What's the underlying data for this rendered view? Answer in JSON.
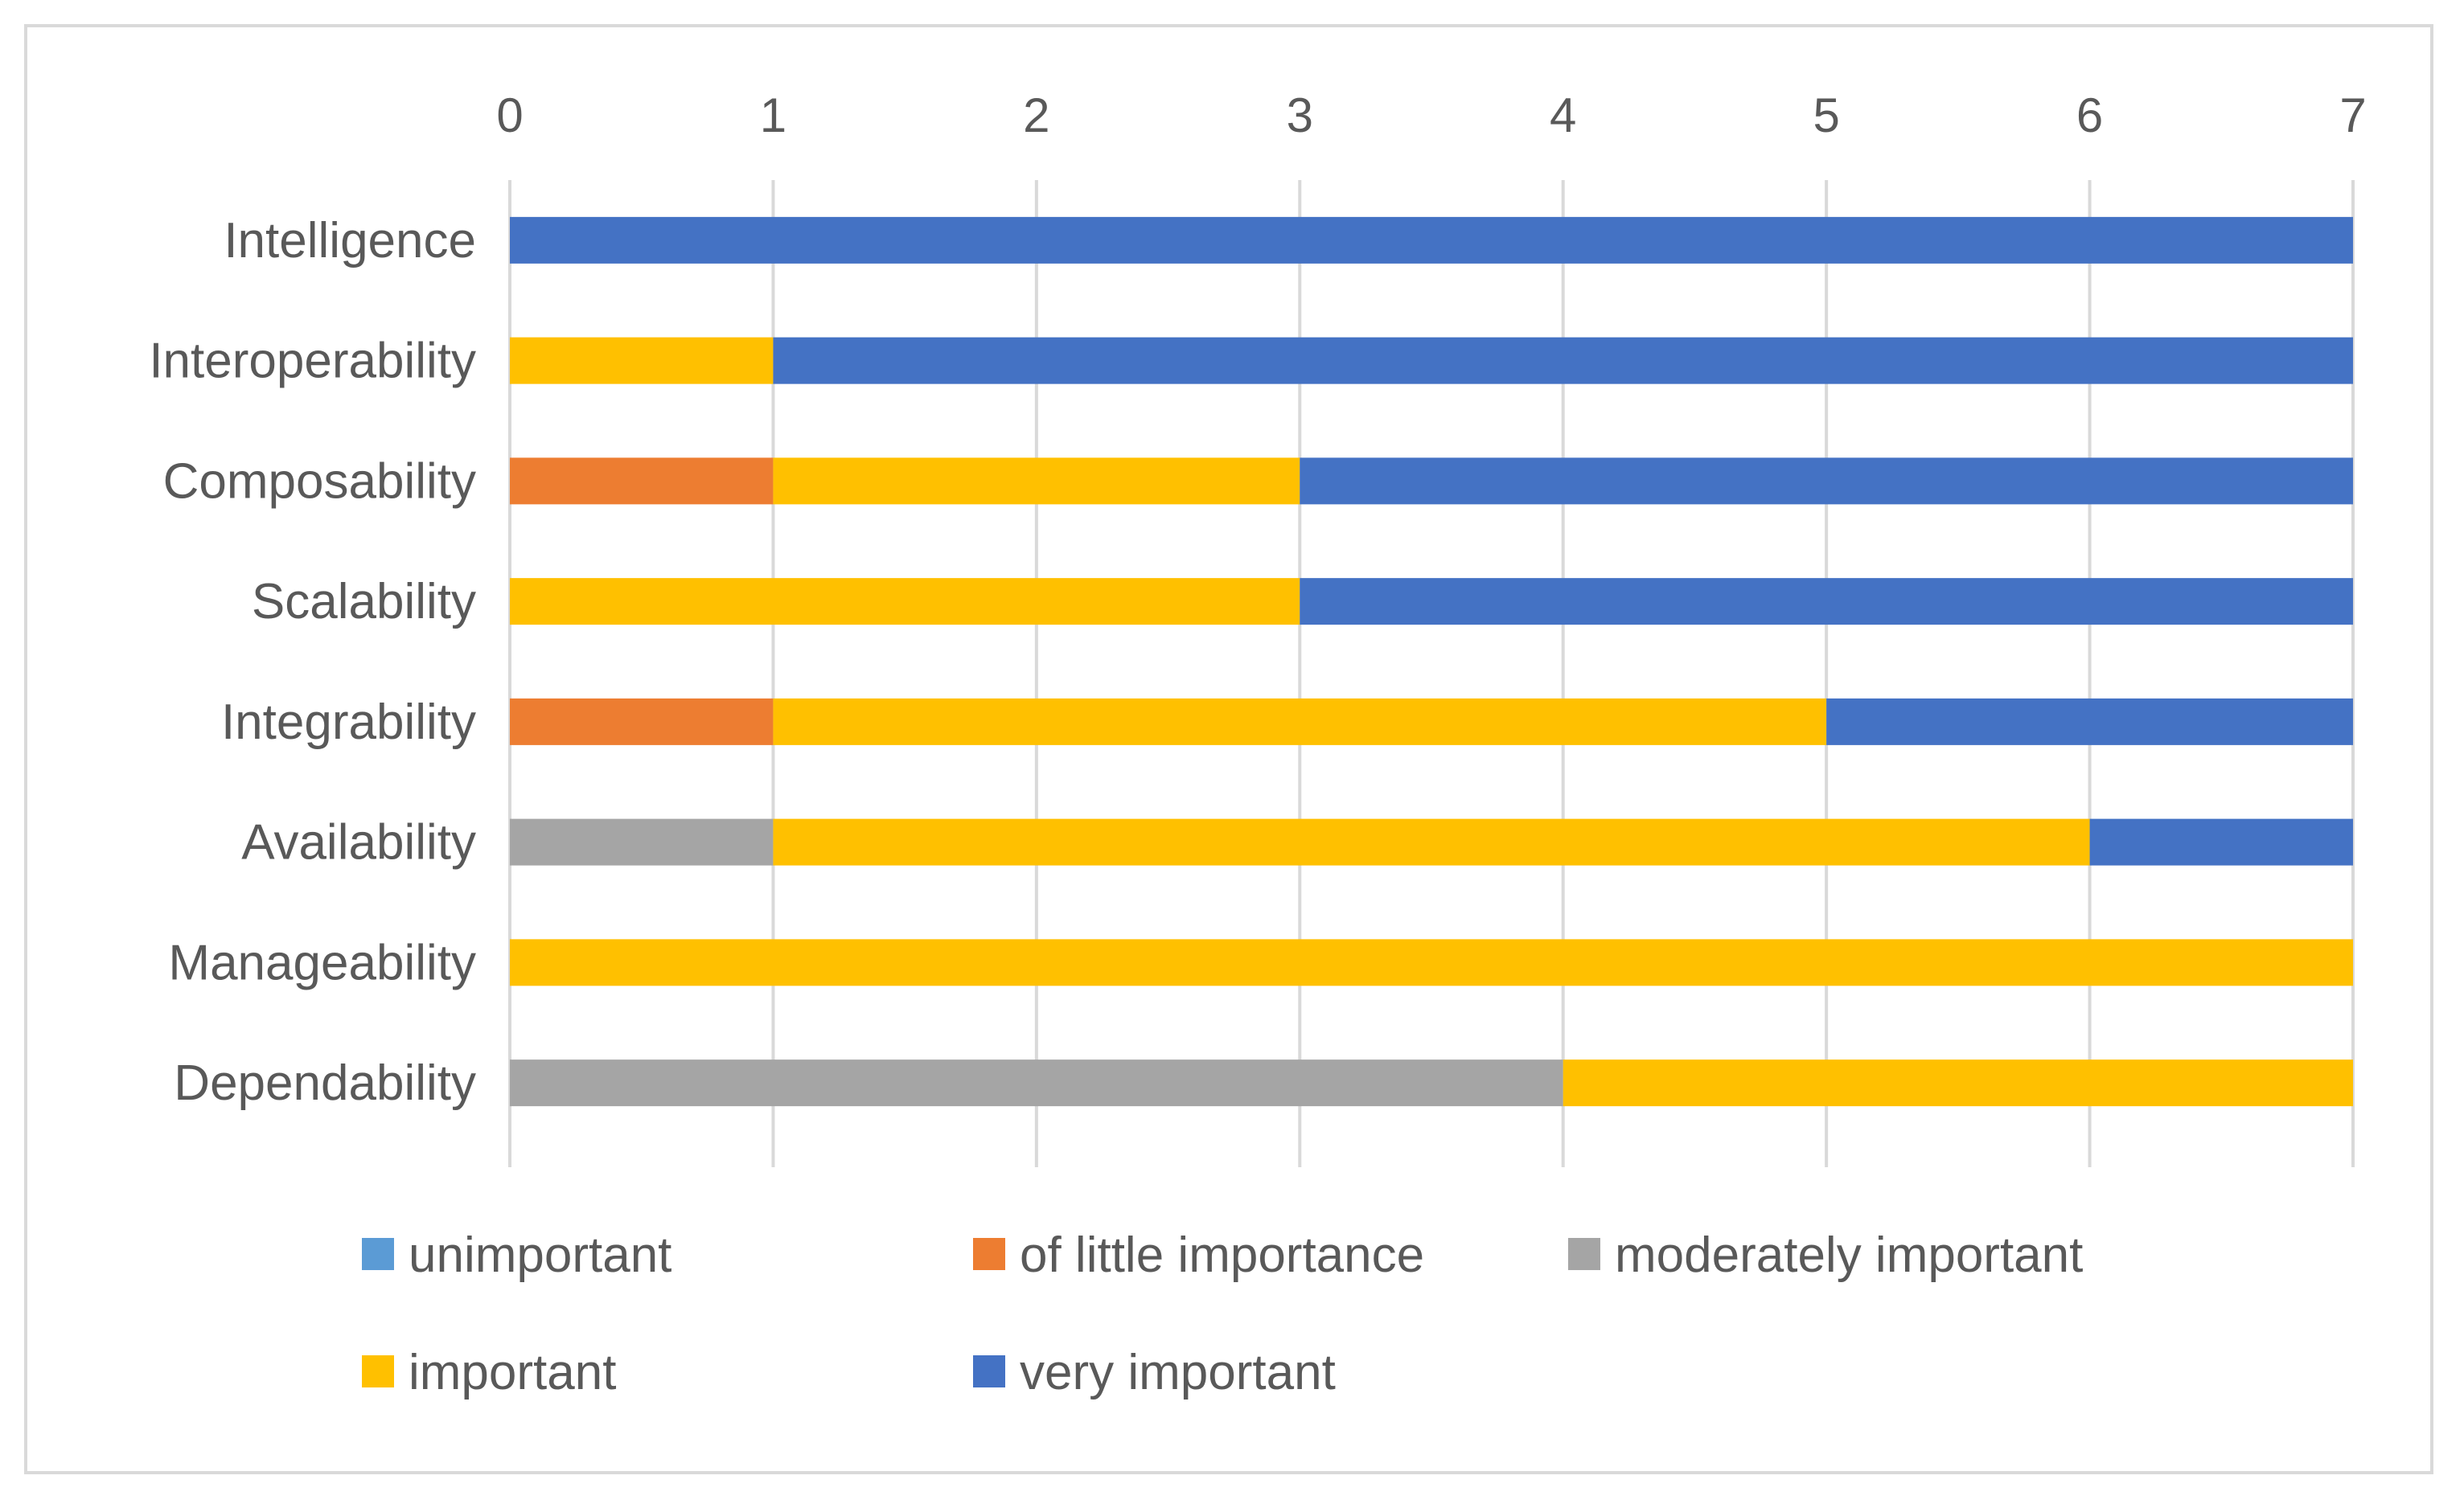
{
  "chart_data": {
    "type": "bar",
    "orientation": "horizontal",
    "stacked": true,
    "title": "",
    "xlabel": "",
    "ylabel": "",
    "xlim": [
      0,
      7
    ],
    "x_ticks": [
      "0",
      "1",
      "2",
      "3",
      "4",
      "5",
      "6",
      "7"
    ],
    "x_axis_position": "top",
    "grid": true,
    "legend_position": "bottom",
    "categories": [
      "Intelligence",
      "Interoperability",
      "Composability",
      "Scalability",
      "Integrability",
      "Availability",
      "Manageability",
      "Dependability"
    ],
    "series": [
      {
        "name": "unimportant",
        "color": "#5b9bd5",
        "values": [
          0,
          0,
          0,
          0,
          0,
          0,
          0,
          0
        ]
      },
      {
        "name": "of little importance",
        "color": "#ed7d31",
        "values": [
          0,
          0,
          1,
          0,
          1,
          0,
          0,
          0
        ]
      },
      {
        "name": "moderately important",
        "color": "#a5a5a5",
        "values": [
          0,
          0,
          0,
          0,
          0,
          1,
          0,
          4
        ]
      },
      {
        "name": "important",
        "color": "#ffc000",
        "values": [
          0,
          1,
          2,
          3,
          4,
          5,
          7,
          3
        ]
      },
      {
        "name": "very important",
        "color": "#4472c4",
        "values": [
          7,
          6,
          4,
          4,
          2,
          1,
          0,
          0
        ]
      }
    ]
  }
}
